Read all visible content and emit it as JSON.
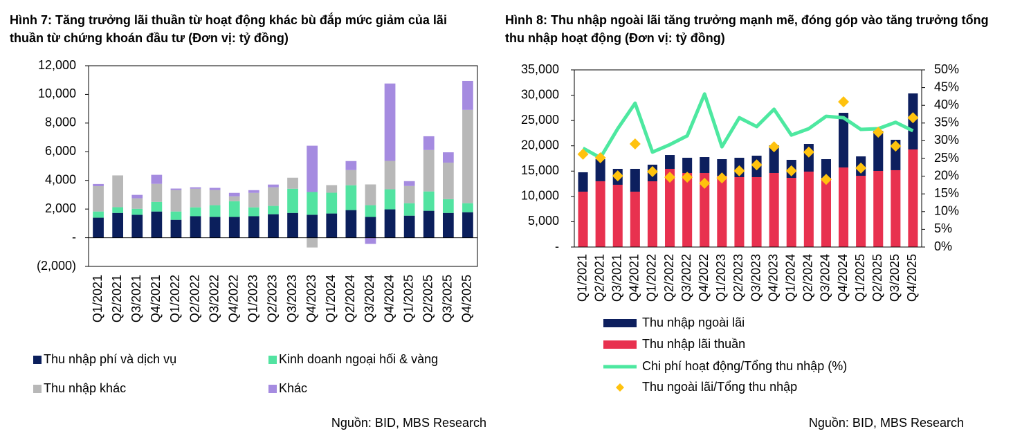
{
  "chart_data": [
    {
      "type": "bar",
      "stacked": true,
      "legend": "bottom",
      "title": "Hình 7: Tăng trưởng lãi thuần từ hoạt động khác bù đắp mức giảm của lãi thuần từ chứng khoán đầu tư  (Đơn vị: tỷ đồng)",
      "source": "Nguồn: BID, MBS Research",
      "categories": [
        "Q1/2021",
        "Q2/2021",
        "Q3/2021",
        "Q4/2021",
        "Q1/2022",
        "Q2/2022",
        "Q3/2022",
        "Q4/2022",
        "Q1/2023",
        "Q2/2023",
        "Q3/2023",
        "Q4/2023",
        "Q1/2024",
        "Q2/2024",
        "Q3/2024",
        "Q4/2024",
        "Q1/2025",
        "Q2/2025",
        "Q3/2025",
        "Q4/2025"
      ],
      "ylim": [
        -2000,
        12000
      ],
      "yticks": [
        {
          "value": -2000,
          "label": "(2,000)"
        },
        {
          "value": 0,
          "label": "-"
        },
        {
          "value": 2000,
          "label": "2,000"
        },
        {
          "value": 4000,
          "label": "4,000"
        },
        {
          "value": 6000,
          "label": "6,000"
        },
        {
          "value": 8000,
          "label": "8,000"
        },
        {
          "value": 10000,
          "label": "10,000"
        },
        {
          "value": 12000,
          "label": "12,000"
        }
      ],
      "series": [
        {
          "name": "Thu nhập phí và dịch vụ",
          "color": "#0b1f5c",
          "values": [
            1400,
            1730,
            1600,
            1830,
            1250,
            1500,
            1450,
            1450,
            1500,
            1640,
            1730,
            1600,
            1690,
            1930,
            1450,
            1980,
            1540,
            1880,
            1730,
            1780
          ]
        },
        {
          "name": "Kinh doanh ngoại hối & vàng",
          "color": "#52e3a1",
          "values": [
            430,
            400,
            420,
            670,
            580,
            620,
            820,
            1100,
            620,
            580,
            1690,
            1590,
            1450,
            1730,
            820,
            1400,
            870,
            1350,
            960,
            630
          ]
        },
        {
          "name": "Thu nhập khác",
          "color": "#b8b8b8",
          "values": [
            1770,
            2220,
            730,
            1260,
            1500,
            1300,
            1060,
            340,
            1010,
            1300,
            770,
            -680,
            530,
            1060,
            1450,
            1980,
            1200,
            2890,
            2550,
            6510
          ]
        },
        {
          "name": "Khác",
          "color": "#a58be0",
          "values": [
            150,
            0,
            240,
            630,
            100,
            100,
            150,
            240,
            190,
            190,
            0,
            3230,
            0,
            630,
            -430,
            5400,
            340,
            960,
            720,
            2020
          ]
        }
      ]
    },
    {
      "type": "combo",
      "legend": "bottom",
      "title": "Hình 8: Thu nhập ngoài lãi tăng trưởng mạnh mẽ, đóng góp vào tăng trưởng tổng thu nhập hoạt động (Đơn vị: tỷ đồng)",
      "source": "Nguồn: BID, MBS Research",
      "categories": [
        "Q1/2021",
        "Q2/2021",
        "Q3/2021",
        "Q4/2021",
        "Q1/2022",
        "Q2/2022",
        "Q3/2022",
        "Q4/2022",
        "Q1/2023",
        "Q2/2023",
        "Q3/2023",
        "Q4/2023",
        "Q1/2024",
        "Q2/2024",
        "Q3/2024",
        "Q4/2024",
        "Q1/2025",
        "Q2/2025",
        "Q3/2025",
        "Q4/2025"
      ],
      "ylim": [
        0,
        35000
      ],
      "yticks": [
        {
          "value": 0,
          "label": "-"
        },
        {
          "value": 5000,
          "label": "5,000"
        },
        {
          "value": 10000,
          "label": "10,000"
        },
        {
          "value": 15000,
          "label": "15,000"
        },
        {
          "value": 20000,
          "label": "20,000"
        },
        {
          "value": 25000,
          "label": "25,000"
        },
        {
          "value": 30000,
          "label": "30,000"
        },
        {
          "value": 35000,
          "label": "35,000"
        }
      ],
      "y2lim": [
        0,
        50
      ],
      "y2ticks": [
        {
          "value": 0,
          "label": "0%"
        },
        {
          "value": 5,
          "label": "5%"
        },
        {
          "value": 10,
          "label": "10%"
        },
        {
          "value": 15,
          "label": "15%"
        },
        {
          "value": 20,
          "label": "20%"
        },
        {
          "value": 25,
          "label": "25%"
        },
        {
          "value": 30,
          "label": "30%"
        },
        {
          "value": 35,
          "label": "35%"
        },
        {
          "value": 40,
          "label": "40%"
        },
        {
          "value": 45,
          "label": "45%"
        },
        {
          "value": 50,
          "label": "50%"
        }
      ],
      "series": [
        {
          "name": "Thu nhập ngoài lãi",
          "type": "bar",
          "color": "#0d1f5e",
          "values": [
            3830,
            4360,
            3150,
            4510,
            3280,
            2730,
            3010,
            3140,
            3280,
            3830,
            4240,
            5470,
            3560,
            5470,
            3690,
            10800,
            3830,
            7930,
            6010,
            11070
          ]
        },
        {
          "name": "Thu nhập lãi thuần",
          "type": "bar",
          "color": "#e8314f",
          "values": [
            10940,
            13000,
            12300,
            10940,
            12990,
            15450,
            14630,
            14630,
            14080,
            13810,
            13810,
            14630,
            13670,
            14900,
            13670,
            15720,
            14080,
            15040,
            15180,
            19280
          ]
        },
        {
          "name": "Chi phí hoạt động/Tổng thu nhập (%)",
          "type": "line",
          "axis": "y2",
          "color": "#4de8a0",
          "values": [
            27.9,
            25.2,
            33.4,
            40.6,
            26.8,
            28.9,
            31.4,
            43.2,
            28.3,
            36.5,
            34.0,
            38.9,
            31.6,
            33.4,
            36.9,
            36.5,
            33.2,
            33.4,
            35.2,
            32.8
          ]
        },
        {
          "name": "Thu ngoài lãi/Tổng thu nhập",
          "type": "scatter",
          "axis": "y2",
          "color": "#ffc20e",
          "values": [
            26.2,
            25.2,
            20.1,
            29.1,
            21.3,
            19.7,
            19.7,
            18.0,
            19.5,
            21.5,
            23.2,
            28.3,
            21.5,
            26.8,
            19.1,
            41.0,
            22.3,
            32.4,
            28.5,
            36.5
          ]
        }
      ]
    }
  ]
}
